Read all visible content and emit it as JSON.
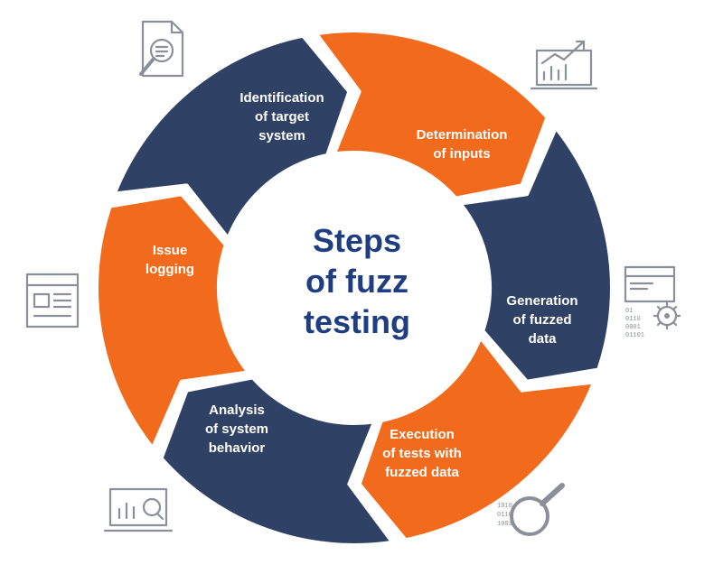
{
  "colors": {
    "navy": "#2f4266",
    "orange": "#f26a1b",
    "title": "#1f3e82",
    "icon": "#8a8f99"
  },
  "center": {
    "line1": "Steps",
    "line2": "of fuzz",
    "line3": "testing"
  },
  "steps": [
    {
      "lines": [
        "Identification",
        "of target",
        "system"
      ],
      "color": "navy"
    },
    {
      "lines": [
        "Determination",
        "of inputs"
      ],
      "color": "orange"
    },
    {
      "lines": [
        "Generation",
        "of fuzzed",
        "data"
      ],
      "color": "navy"
    },
    {
      "lines": [
        "Execution",
        "of tests with",
        "fuzzed data"
      ],
      "color": "orange"
    },
    {
      "lines": [
        "Analysis",
        "of system",
        "behavior"
      ],
      "color": "navy"
    },
    {
      "lines": [
        "Issue",
        "logging"
      ],
      "color": "orange"
    }
  ],
  "icons": [
    "document-search-icon",
    "chart-monitor-icon",
    "settings-binary-icon",
    "binary-search-icon",
    "analytics-monitor-icon",
    "log-document-icon"
  ],
  "binary_text": {
    "settings": [
      "01",
      "0110",
      "0001",
      "01101"
    ],
    "search": [
      "1010",
      "0110",
      "1001"
    ]
  }
}
